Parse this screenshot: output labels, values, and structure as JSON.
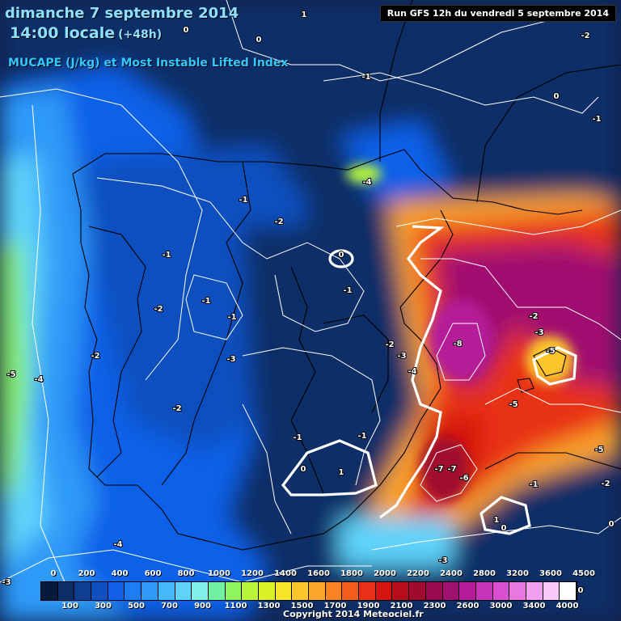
{
  "header": {
    "date_line": "dimanche 7 septembre 2014",
    "time_line": "14:00 locale",
    "lead_time": "(+48h)",
    "parameter": "MUCAPE (J/kg) et Most Instable Lifted Index",
    "run_info": "Run GFS 12h du vendredi 5 septembre 2014"
  },
  "legend": {
    "top_labels": [
      "0",
      "200",
      "400",
      "600",
      "800",
      "1000",
      "1200",
      "1400",
      "1600",
      "1800",
      "2000",
      "2200",
      "2400",
      "2800",
      "3200",
      "3600",
      "4500"
    ],
    "bottom_labels": [
      "100",
      "300",
      "500",
      "700",
      "900",
      "1100",
      "1300",
      "1500",
      "1700",
      "1900",
      "2100",
      "2300",
      "2600",
      "3000",
      "3400",
      "4000"
    ],
    "colors": [
      "#051a3c",
      "#0b2e66",
      "#0d3e91",
      "#0f4fbf",
      "#1060e8",
      "#1e7cf5",
      "#2f9af8",
      "#45b8fb",
      "#5fd3fb",
      "#7ff0ea",
      "#70f0a0",
      "#8ef55e",
      "#b8f53a",
      "#dcf02a",
      "#f5e42a",
      "#fbc62a",
      "#fba52a",
      "#f98320",
      "#f45c1c",
      "#e83018",
      "#d41410",
      "#b80c1a",
      "#a00a2e",
      "#9a0a50",
      "#a01070",
      "#b41c98",
      "#c832b8",
      "#d850d0",
      "#e878e0",
      "#f0a0ee",
      "#f8c8f6",
      "#ffffff"
    ]
  },
  "lifted_index_labels": [
    "1",
    "0",
    "0",
    "-2",
    "-1",
    "0",
    "-1",
    "-4",
    "-1",
    "-2",
    "-1",
    "-1",
    "-1",
    "0",
    "-1",
    "-2",
    "-2",
    "-7",
    "-6",
    "-5",
    "-8",
    "-3",
    "-2",
    "-5",
    "-4",
    "-2",
    "-3",
    "-4",
    "-5",
    "-2",
    "-3",
    "-1",
    "-1",
    "0",
    "1",
    "-7",
    "-6",
    "-1",
    "-2",
    "1",
    "0",
    "0",
    "-5",
    "-4",
    "-3",
    "-3",
    "0"
  ],
  "copyright": "Copyright 2014 Meteociel.fr"
}
